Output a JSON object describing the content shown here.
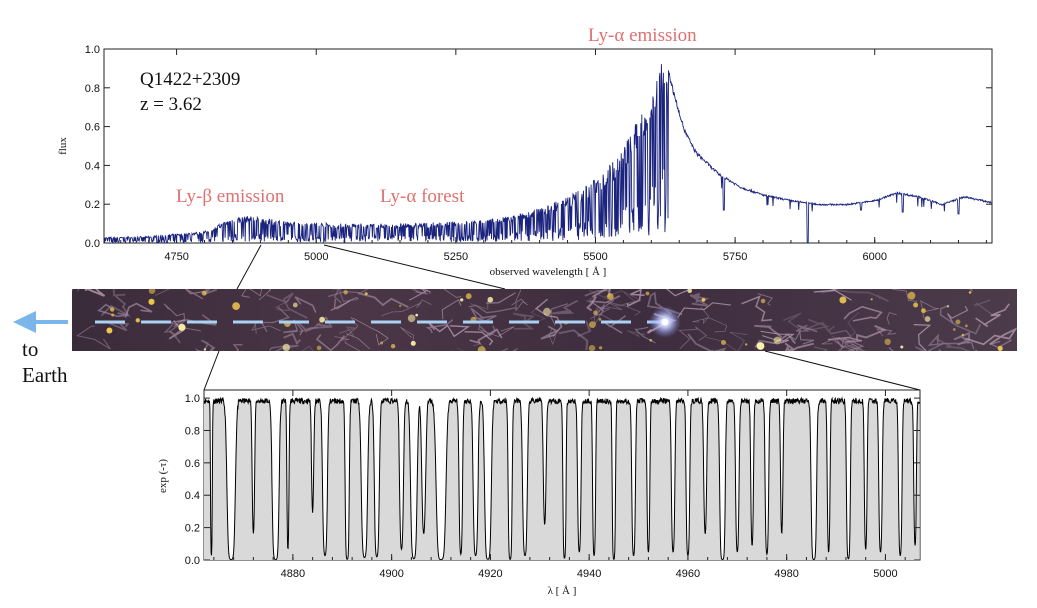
{
  "chart_data": [
    {
      "type": "line",
      "object_name": "Q1422+2309",
      "redshift_label": "z = 3.62",
      "xlabel": "observed wavelength [ Å ]",
      "ylabel": "flux",
      "xlim": [
        4620,
        6210
      ],
      "ylim": [
        0,
        1.0
      ],
      "xticks": [
        4750,
        5000,
        5250,
        5500,
        5750,
        6000
      ],
      "yticks": [
        0.0,
        0.2,
        0.4,
        0.6,
        0.8,
        1.0
      ],
      "ytick_labels": [
        "0.0",
        "0.2",
        "0.4",
        "0.6",
        "0.8",
        "1.0"
      ],
      "annotations": [
        "Ly-α emission",
        "Ly-β emission",
        "Ly-α forest"
      ],
      "series": [
        {
          "color": "#1a237e",
          "continuum": {
            "x": [
              4620,
              4700,
              4800,
              4850,
              4880,
              4950,
              5050,
              5150,
              5250,
              5300,
              5350,
              5400,
              5450,
              5500,
              5540,
              5570,
              5590,
              5605,
              5615,
              5625,
              5640,
              5660,
              5680,
              5720,
              5760,
              5800,
              5850,
              5900,
              5950,
              6000,
              6040,
              6080,
              6120,
              6160,
              6210
            ],
            "y": [
              0.03,
              0.035,
              0.06,
              0.13,
              0.14,
              0.11,
              0.1,
              0.1,
              0.11,
              0.12,
              0.14,
              0.18,
              0.24,
              0.33,
              0.45,
              0.6,
              0.72,
              0.85,
              0.92,
              0.96,
              0.78,
              0.58,
              0.47,
              0.36,
              0.29,
              0.25,
              0.22,
              0.2,
              0.2,
              0.22,
              0.26,
              0.24,
              0.2,
              0.24,
              0.21
            ],
            "forest_range": [
              4620,
              5630
            ],
            "emission_line_spikes": [
              {
                "x": 5730,
                "y": 0.17
              },
              {
                "x": 5880,
                "y": 0.0
              },
              {
                "x": 5975,
                "y": 0.17
              },
              {
                "x": 6050,
                "y": 0.16
              },
              {
                "x": 6150,
                "y": 0.15
              }
            ]
          }
        }
      ]
    },
    {
      "type": "area",
      "xlabel": "λ [ Å ]",
      "ylabel": "exp (-τ)",
      "xlim": [
        4862,
        5007
      ],
      "ylim": [
        0,
        1.05
      ],
      "xticks": [
        4880,
        4900,
        4920,
        4940,
        4960,
        4980,
        5000
      ],
      "yticks": [
        0.0,
        0.2,
        0.4,
        0.6,
        0.8,
        1.0
      ],
      "ytick_labels": [
        "0.0",
        "0.2",
        "0.4",
        "0.6",
        "0.8",
        "1.0"
      ],
      "series": [
        {
          "color": "#000000",
          "fill": "#d9d9d9",
          "absorbers": [
            [
              4863.5,
              0.15,
              0.6
            ],
            [
              4867.5,
              0.6,
              1.0
            ],
            [
              4872,
              0.25,
              0.3
            ],
            [
              4876.5,
              0.5,
              1.0
            ],
            [
              4879,
              0.2,
              0.45
            ],
            [
              4884,
              0.25,
              0.2
            ],
            [
              4886.5,
              0.4,
              0.6
            ],
            [
              4891,
              0.3,
              0.9
            ],
            [
              4894.5,
              0.5,
              0.7
            ],
            [
              4897,
              0.4,
              0.65
            ],
            [
              4902,
              0.35,
              0.45
            ],
            [
              4904.5,
              0.5,
              0.8
            ],
            [
              4906.5,
              0.4,
              0.3
            ],
            [
              4910,
              0.7,
              1.0
            ],
            [
              4914,
              0.3,
              0.55
            ],
            [
              4917,
              0.4,
              0.6
            ],
            [
              4919.5,
              0.5,
              0.9
            ],
            [
              4924,
              0.3,
              0.9
            ],
            [
              4927,
              0.4,
              0.6
            ],
            [
              4931,
              0.3,
              0.25
            ],
            [
              4935,
              0.25,
              0.75
            ],
            [
              4938,
              0.3,
              0.5
            ],
            [
              4941,
              0.25,
              0.6
            ],
            [
              4945,
              0.25,
              0.9
            ],
            [
              4949,
              0.3,
              0.6
            ],
            [
              4952,
              0.25,
              0.5
            ],
            [
              4957,
              0.3,
              0.5
            ],
            [
              4960,
              0.3,
              0.6
            ],
            [
              4963.5,
              0.3,
              0.3
            ],
            [
              4967,
              0.4,
              1.0
            ],
            [
              4970,
              0.3,
              0.5
            ],
            [
              4973,
              0.25,
              0.4
            ],
            [
              4976,
              0.3,
              0.55
            ],
            [
              4979,
              0.25,
              0.3
            ],
            [
              4985.5,
              0.4,
              1.0
            ],
            [
              4988.5,
              0.25,
              0.5
            ],
            [
              4992.5,
              0.3,
              0.8
            ],
            [
              4996,
              0.25,
              0.45
            ],
            [
              4999,
              0.3,
              0.5
            ],
            [
              5003,
              0.3,
              0.6
            ],
            [
              5006,
              0.25,
              0.4
            ]
          ]
        }
      ]
    }
  ],
  "sim_strip": {
    "arrow_color": "#7ab6ea",
    "dash_color": "#a9d2f5",
    "arrow_label_line1": "to",
    "arrow_label_line2": "Earth"
  }
}
